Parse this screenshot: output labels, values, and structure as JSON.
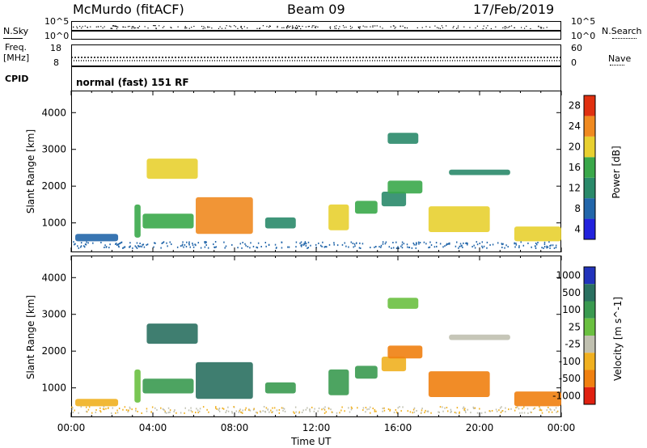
{
  "header": {
    "station": "McMurdo (fitACF)",
    "beam": "Beam 09",
    "date": "17/Feb/2019"
  },
  "left_labels": {
    "nsky": "N.Sky",
    "freq_line1": "Freq.",
    "freq_line2": "[MHz]",
    "cpid": "CPID"
  },
  "right_labels": {
    "nsearch": "N.Search",
    "nave": "Nave"
  },
  "panels": {
    "noise": {
      "left_ticks": [
        "10^5",
        "10^0"
      ],
      "right_ticks": [
        "10^5",
        "10^0"
      ]
    },
    "freq": {
      "left_ticks": [
        "18",
        "8"
      ],
      "right_ticks": [
        "60",
        "0"
      ]
    },
    "cpid": {
      "text": "normal (fast) 151 RF"
    }
  },
  "chart_data": [
    {
      "type": "heatmap",
      "name": "power",
      "xlabel": "",
      "ylabel": "Slant Range [km]",
      "xlim_hours": [
        0,
        24
      ],
      "ylim": [
        200,
        4600
      ],
      "y_ticks": [
        "1000",
        "2000",
        "3000",
        "4000"
      ],
      "colorbar_label": "Power [dB]",
      "colorbar_ticks": [
        "4",
        "8",
        "12",
        "16",
        "20",
        "24",
        "28"
      ],
      "colorbar_colors": [
        "#2222dd",
        "#2266aa",
        "#2a8a6a",
        "#3aa84a",
        "#e8d030",
        "#f08a20",
        "#e03010"
      ],
      "regions": [
        {
          "t0": 0.2,
          "t1": 2.3,
          "r0": 500,
          "r1": 700,
          "level": 1
        },
        {
          "t0": 3.1,
          "t1": 3.4,
          "r0": 600,
          "r1": 1500,
          "level": 3
        },
        {
          "t0": 3.5,
          "t1": 6.0,
          "r0": 850,
          "r1": 1250,
          "level": 3
        },
        {
          "t0": 3.7,
          "t1": 6.2,
          "r0": 2200,
          "r1": 2750,
          "level": 4
        },
        {
          "t0": 6.1,
          "t1": 8.9,
          "r0": 700,
          "r1": 1700,
          "level": 5
        },
        {
          "t0": 9.5,
          "t1": 11.0,
          "r0": 850,
          "r1": 1150,
          "level": 2
        },
        {
          "t0": 12.6,
          "t1": 13.6,
          "r0": 800,
          "r1": 1500,
          "level": 4
        },
        {
          "t0": 13.9,
          "t1": 15.0,
          "r0": 1250,
          "r1": 1600,
          "level": 3
        },
        {
          "t0": 15.2,
          "t1": 16.4,
          "r0": 1450,
          "r1": 1850,
          "level": 2
        },
        {
          "t0": 15.5,
          "t1": 17.2,
          "r0": 1800,
          "r1": 2150,
          "level": 3
        },
        {
          "t0": 15.5,
          "t1": 17.0,
          "r0": 3150,
          "r1": 3450,
          "level": 2
        },
        {
          "t0": 17.5,
          "t1": 20.5,
          "r0": 750,
          "r1": 1450,
          "level": 4
        },
        {
          "t0": 18.5,
          "t1": 21.5,
          "r0": 2300,
          "r1": 2450,
          "level": 2
        },
        {
          "t0": 21.7,
          "t1": 24.0,
          "r0": 500,
          "r1": 900,
          "level": 4
        }
      ]
    },
    {
      "type": "heatmap",
      "name": "velocity",
      "xlabel": "Time UT",
      "ylabel": "Slant Range [km]",
      "xlim_hours": [
        0,
        24
      ],
      "ylim": [
        200,
        4600
      ],
      "x_ticks": [
        "00:00",
        "04:00",
        "08:00",
        "12:00",
        "16:00",
        "20:00",
        "00:00"
      ],
      "y_ticks": [
        "1000",
        "2000",
        "3000",
        "4000"
      ],
      "colorbar_label": "Velocity [m s^-1]",
      "colorbar_ticks": [
        "1000",
        "500",
        "100",
        "25",
        "-25",
        "-100",
        "-500",
        "-1000"
      ],
      "colorbar_colors": [
        "#2233bb",
        "#2a7060",
        "#3a9a50",
        "#6ac040",
        "#c0c0b0",
        "#f0b020",
        "#f08010",
        "#e02010"
      ],
      "regions": [
        {
          "t0": 0.2,
          "t1": 2.3,
          "r0": 500,
          "r1": 700,
          "level": 5
        },
        {
          "t0": 3.1,
          "t1": 3.4,
          "r0": 600,
          "r1": 1500,
          "level": 3
        },
        {
          "t0": 3.5,
          "t1": 6.0,
          "r0": 850,
          "r1": 1250,
          "level": 2
        },
        {
          "t0": 3.7,
          "t1": 6.2,
          "r0": 2200,
          "r1": 2750,
          "level": 1
        },
        {
          "t0": 6.1,
          "t1": 8.9,
          "r0": 700,
          "r1": 1700,
          "level": 1
        },
        {
          "t0": 9.5,
          "t1": 11.0,
          "r0": 850,
          "r1": 1150,
          "level": 2
        },
        {
          "t0": 12.6,
          "t1": 13.6,
          "r0": 800,
          "r1": 1500,
          "level": 2
        },
        {
          "t0": 13.9,
          "t1": 15.0,
          "r0": 1250,
          "r1": 1600,
          "level": 2
        },
        {
          "t0": 15.2,
          "t1": 16.4,
          "r0": 1450,
          "r1": 1850,
          "level": 5
        },
        {
          "t0": 15.5,
          "t1": 17.2,
          "r0": 1800,
          "r1": 2150,
          "level": 6
        },
        {
          "t0": 15.5,
          "t1": 17.0,
          "r0": 3150,
          "r1": 3450,
          "level": 3
        },
        {
          "t0": 17.5,
          "t1": 20.5,
          "r0": 750,
          "r1": 1450,
          "level": 6
        },
        {
          "t0": 18.5,
          "t1": 21.5,
          "r0": 2300,
          "r1": 2450,
          "level": 4
        },
        {
          "t0": 21.7,
          "t1": 24.0,
          "r0": 500,
          "r1": 900,
          "level": 6
        }
      ]
    }
  ]
}
